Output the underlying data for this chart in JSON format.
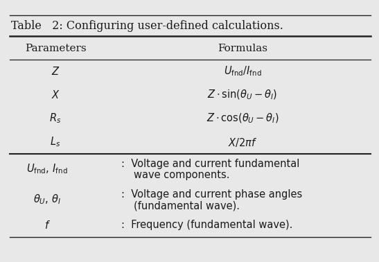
{
  "title": "Table   2: Configuring user-defined calculations.",
  "col_headers": [
    "Parameters",
    "Formulas"
  ],
  "table_rows": [
    [
      "$Z$",
      "$U_{\\mathrm{fnd}}/I_{\\mathrm{fnd}}$"
    ],
    [
      "$X$",
      "$Z \\cdot \\sin(\\theta_U - \\theta_I)$"
    ],
    [
      "$R_s$",
      "$Z \\cdot \\cos(\\theta_U - \\theta_I)$"
    ],
    [
      "$L_s$",
      "$X/2\\pi f$"
    ]
  ],
  "legend_sym": [
    "$U_{\\mathrm{fnd}},\\, I_{\\mathrm{fnd}}$",
    "$\\theta_U,\\, \\theta_I$",
    "$f$"
  ],
  "legend_line1": [
    ":  Voltage and current fundamental",
    ":  Voltage and current phase angles",
    ":  Frequency (fundamental wave)."
  ],
  "legend_line2": [
    "wave components.",
    "(fundamental wave).",
    ""
  ],
  "bg_color": "#e8e8e8",
  "text_color": "#1a1a1a",
  "line_color": "#222222",
  "fontsize_title": 11.5,
  "fontsize_header": 11,
  "fontsize_body": 10.5,
  "fontsize_legend": 10.5
}
